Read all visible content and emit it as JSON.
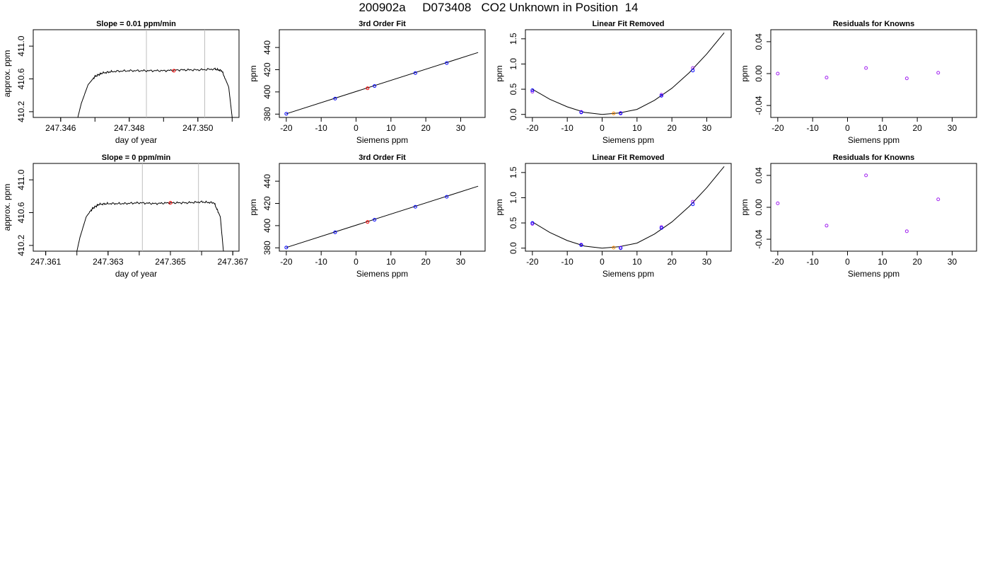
{
  "page_title": "200902a     D073408   CO2 Unknown in Position  14",
  "colors": {
    "background": "#ffffff",
    "axis": "#000000",
    "trace": "#000000",
    "marker_vline": "#bebebe",
    "known_point": "#0000ff",
    "known_point_alt": "#a020f0",
    "unknown_point": "#ff0000",
    "unknown_point_alt": "#ff8c00"
  },
  "chart_data": [
    {
      "type": "line",
      "title": "Slope =  0.01  ppm/min",
      "xlabel": "day of year",
      "ylabel": "approx. ppm",
      "xlim": [
        247.3452,
        247.3512
      ],
      "ylim": [
        410.13,
        411.2
      ],
      "xticks": [
        "247.346",
        "247.348",
        "247.350"
      ],
      "yticks": [
        "410.2",
        "410.6",
        "411.0"
      ],
      "vlines": [
        247.3485,
        247.3502
      ],
      "trace": {
        "x": [
          247.3465,
          247.3466,
          247.3468,
          247.347,
          247.3472,
          247.3475,
          247.348,
          247.3485,
          247.349,
          247.3495,
          247.35,
          247.3505,
          247.3507,
          247.3509,
          247.351
        ],
        "y": [
          410.13,
          410.3,
          410.53,
          410.63,
          410.67,
          410.69,
          410.7,
          410.7,
          410.7,
          410.71,
          410.71,
          410.72,
          410.7,
          410.5,
          410.13
        ]
      },
      "unknown_point": {
        "x": 247.3493,
        "y": 410.7
      }
    },
    {
      "type": "scatter",
      "title": "3rd Order Fit",
      "xlabel": "Siemens ppm",
      "ylabel": "ppm",
      "xlim": [
        -22,
        37
      ],
      "ylim": [
        377,
        456
      ],
      "xticks": [
        "-20",
        "-10",
        "0",
        "10",
        "20",
        "30"
      ],
      "yticks": [
        "380",
        "400",
        "420",
        "440"
      ],
      "fit_line": {
        "x": [
          -20,
          35
        ],
        "y": [
          380.3,
          435.5
        ]
      },
      "knowns": {
        "x": [
          -20,
          -6,
          5.3,
          17,
          26
        ],
        "y": [
          380.3,
          394,
          405.3,
          417,
          426
        ]
      },
      "unknown": {
        "x": 3.3,
        "y": 403.3
      }
    },
    {
      "type": "scatter",
      "title": "Linear Fit Removed",
      "xlabel": "Siemens ppm",
      "ylabel": "ppm",
      "xlim": [
        -22,
        37
      ],
      "ylim": [
        -0.06,
        1.68
      ],
      "xticks": [
        "-20",
        "-10",
        "0",
        "10",
        "20",
        "30"
      ],
      "yticks": [
        "0.0",
        "0.5",
        "1.0",
        "1.5"
      ],
      "fit_curve": {
        "x": [
          -20,
          -15,
          -10,
          -5,
          0,
          5,
          10,
          15,
          20,
          25,
          30,
          35
        ],
        "y": [
          0.5,
          0.3,
          0.15,
          0.04,
          0.0,
          0.03,
          0.1,
          0.28,
          0.52,
          0.83,
          1.2,
          1.62
        ]
      },
      "knowns": {
        "x": [
          -20,
          -6,
          5.3,
          17,
          26
        ],
        "y": [
          0.48,
          0.04,
          0.02,
          0.37,
          0.87
        ]
      },
      "knowns_alt": {
        "x": [
          -20,
          -6,
          5.3,
          17,
          26
        ],
        "y": [
          0.45,
          0.05,
          0.03,
          0.39,
          0.92
        ]
      },
      "unknown": {
        "x": 3.3,
        "y": 0.02
      }
    },
    {
      "type": "scatter",
      "title": "Residuals for Knowns",
      "xlabel": "Siemens ppm",
      "ylabel": "ppm",
      "xlim": [
        -22,
        37
      ],
      "ylim": [
        -0.055,
        0.055
      ],
      "xticks": [
        "-20",
        "-10",
        "0",
        "10",
        "20",
        "30"
      ],
      "yticks": [
        "-0.04",
        "0.00",
        "0.04"
      ],
      "knowns_alt": {
        "x": [
          -20,
          -6,
          5.3,
          17,
          26
        ],
        "y": [
          0.0,
          -0.005,
          0.007,
          -0.006,
          0.001
        ]
      }
    },
    {
      "type": "line",
      "title": "Slope =  0  ppm/min",
      "xlabel": "day of year",
      "ylabel": "approx. ppm",
      "xlim": [
        247.3606,
        247.3672
      ],
      "ylim": [
        410.13,
        411.2
      ],
      "xticks": [
        "247.361",
        "247.363",
        "247.365",
        "247.367"
      ],
      "yticks": [
        "410.2",
        "410.6",
        "411.0"
      ],
      "vlines": [
        247.3641,
        247.3659
      ],
      "trace": {
        "x": [
          247.362,
          247.3621,
          247.3623,
          247.3625,
          247.3627,
          247.363,
          247.3635,
          247.364,
          247.3645,
          247.365,
          247.3655,
          247.366,
          247.3664,
          247.3666,
          247.3667
        ],
        "y": [
          410.13,
          410.3,
          410.55,
          410.65,
          410.7,
          410.71,
          410.71,
          410.72,
          410.71,
          410.72,
          410.72,
          410.73,
          410.72,
          410.55,
          410.13
        ]
      },
      "unknown_point": {
        "x": 247.365,
        "y": 410.72
      }
    },
    {
      "type": "scatter",
      "title": "3rd Order Fit",
      "xlabel": "Siemens ppm",
      "ylabel": "ppm",
      "xlim": [
        -22,
        37
      ],
      "ylim": [
        377,
        456
      ],
      "xticks": [
        "-20",
        "-10",
        "0",
        "10",
        "20",
        "30"
      ],
      "yticks": [
        "380",
        "400",
        "420",
        "440"
      ],
      "fit_line": {
        "x": [
          -20,
          35
        ],
        "y": [
          380.3,
          435.5
        ]
      },
      "knowns": {
        "x": [
          -20,
          -6,
          5.3,
          17,
          26
        ],
        "y": [
          380.3,
          394,
          405.3,
          417,
          426
        ]
      },
      "unknown": {
        "x": 3.3,
        "y": 403.3
      }
    },
    {
      "type": "scatter",
      "title": "Linear Fit Removed",
      "xlabel": "Siemens ppm",
      "ylabel": "ppm",
      "xlim": [
        -22,
        37
      ],
      "ylim": [
        -0.06,
        1.68
      ],
      "xticks": [
        "-20",
        "-10",
        "0",
        "10",
        "20",
        "30"
      ],
      "yticks": [
        "0.0",
        "0.5",
        "1.0",
        "1.5"
      ],
      "fit_curve": {
        "x": [
          -20,
          -15,
          -10,
          -5,
          0,
          5,
          10,
          15,
          20,
          25,
          30,
          35
        ],
        "y": [
          0.52,
          0.31,
          0.15,
          0.04,
          0.0,
          0.03,
          0.1,
          0.28,
          0.52,
          0.83,
          1.2,
          1.62
        ]
      },
      "knowns": {
        "x": [
          -20,
          -6,
          5.3,
          17,
          26
        ],
        "y": [
          0.5,
          0.06,
          0.0,
          0.4,
          0.87
        ]
      },
      "knowns_alt": {
        "x": [
          -20,
          -6,
          5.3,
          17,
          26
        ],
        "y": [
          0.48,
          0.07,
          0.01,
          0.42,
          0.92
        ]
      },
      "unknown": {
        "x": 3.3,
        "y": 0.01
      }
    },
    {
      "type": "scatter",
      "title": "Residuals for Knowns",
      "xlabel": "Siemens ppm",
      "ylabel": "ppm",
      "xlim": [
        -22,
        37
      ],
      "ylim": [
        -0.055,
        0.055
      ],
      "xticks": [
        "-20",
        "-10",
        "0",
        "10",
        "20",
        "30"
      ],
      "yticks": [
        "-0.04",
        "0.00",
        "0.04"
      ],
      "knowns_alt": {
        "x": [
          -20,
          -6,
          5.3,
          17,
          26
        ],
        "y": [
          0.005,
          -0.023,
          0.04,
          -0.03,
          0.01
        ]
      }
    }
  ]
}
